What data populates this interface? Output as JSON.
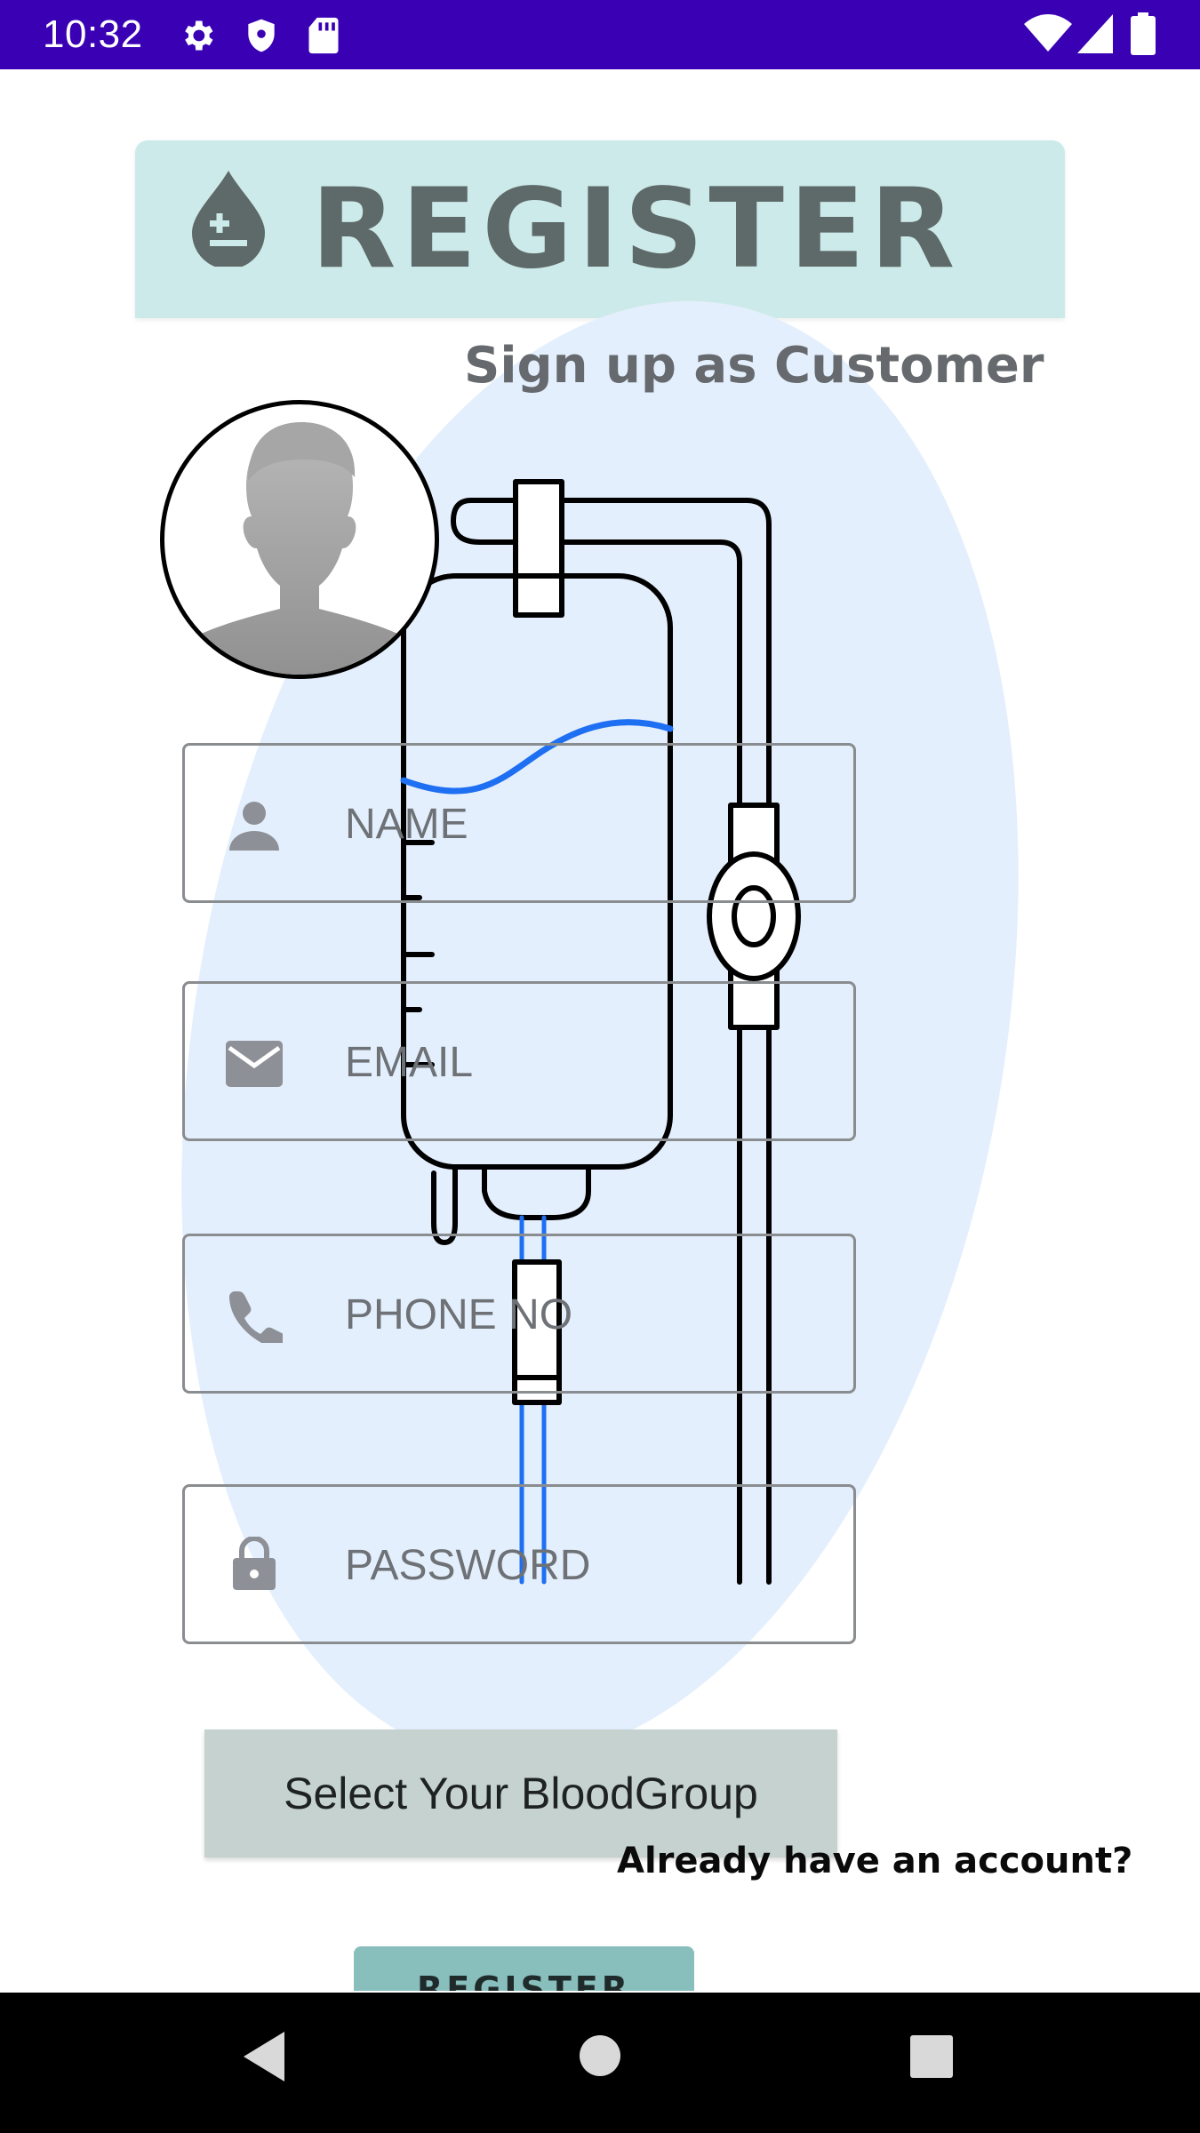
{
  "status_bar": {
    "time": "10:32",
    "left_icons": [
      "gear-icon",
      "shield-icon",
      "sd-card-icon"
    ],
    "right_icons": [
      "wifi-icon",
      "cell-signal-icon",
      "battery-icon"
    ],
    "color": "#3a00b4"
  },
  "header": {
    "title": "REGISTER",
    "icon": "blood-drop-plus-icon"
  },
  "subtitle": "Sign up as Customer",
  "avatar": {
    "icon": "default-person-avatar"
  },
  "form": {
    "name_placeholder": "NAME",
    "email_placeholder": "EMAIL",
    "phone_placeholder": "PHONE NO",
    "password_placeholder": "PASSWORD"
  },
  "blood_group_button": "Select Your BloodGroup",
  "login_link": "Already have an account?",
  "register_button": "REGISTER",
  "nav_bar": {
    "buttons": [
      "back-icon",
      "home-icon",
      "recents-icon"
    ]
  },
  "colors": {
    "header_bg": "#cdeaea",
    "blob": "#e4effd",
    "register_button": "#88bebc",
    "blood_group_button": "#c5d2cf"
  }
}
